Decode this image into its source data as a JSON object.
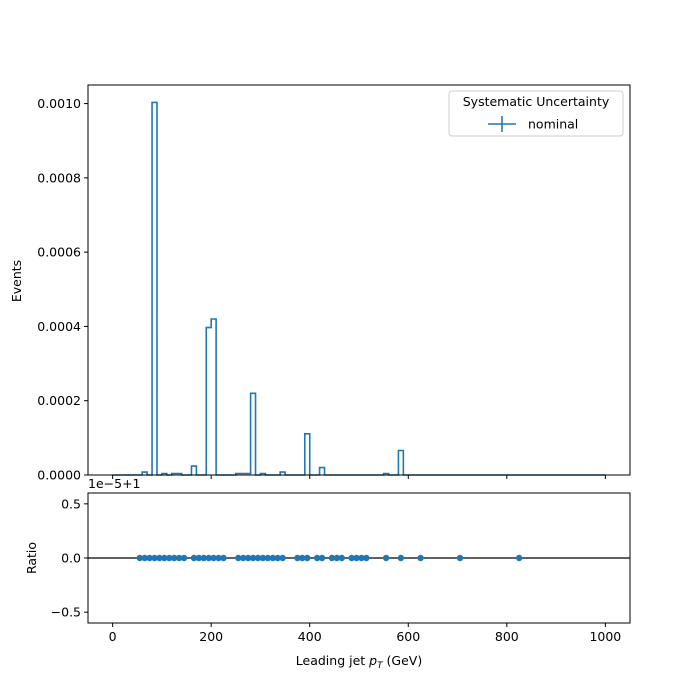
{
  "chart_data": [
    {
      "type": "histogram",
      "panel": "main",
      "ylabel": "Events",
      "xlim": [
        -50,
        1050
      ],
      "ylim": [
        0,
        0.00105
      ],
      "yticks": [
        0.0,
        0.0002,
        0.0004,
        0.0006,
        0.0008,
        0.001
      ],
      "ytick_labels": [
        "0.0000",
        "0.0002",
        "0.0004",
        "0.0006",
        "0.0008",
        "0.0010"
      ],
      "xticks": [
        0,
        200,
        400,
        600,
        800,
        1000
      ],
      "bin_width": 10,
      "bin_range": [
        0,
        1000
      ],
      "series": [
        {
          "name": "nominal",
          "color": "#1f77b4",
          "nonzero_bins": [
            {
              "x": 60,
              "y": 8e-06
            },
            {
              "x": 80,
              "y": 0.001003
            },
            {
              "x": 100,
              "y": 4e-06
            },
            {
              "x": 120,
              "y": 4e-06
            },
            {
              "x": 130,
              "y": 4e-06
            },
            {
              "x": 160,
              "y": 2.4e-05
            },
            {
              "x": 190,
              "y": 0.000397
            },
            {
              "x": 200,
              "y": 0.00042
            },
            {
              "x": 250,
              "y": 4e-06
            },
            {
              "x": 260,
              "y": 4e-06
            },
            {
              "x": 270,
              "y": 4e-06
            },
            {
              "x": 280,
              "y": 0.00022
            },
            {
              "x": 300,
              "y": 4e-06
            },
            {
              "x": 340,
              "y": 8e-06
            },
            {
              "x": 390,
              "y": 0.000111
            },
            {
              "x": 420,
              "y": 2e-05
            },
            {
              "x": 550,
              "y": 4e-06
            },
            {
              "x": 580,
              "y": 6.6e-05
            }
          ]
        }
      ],
      "legend": {
        "title": "Systematic Uncertainty",
        "entries": [
          "nominal"
        ],
        "position": "upper right"
      }
    },
    {
      "type": "scatter",
      "panel": "ratio",
      "ylabel": "Ratio",
      "xlabel": "Leading jet  p_T (GeV)",
      "xlabel_main": "Leading jet  ",
      "xlabel_math": "p",
      "xlabel_sub": "T",
      "xlabel_unit": " (GeV)",
      "offset_text": "1e−5+1",
      "xlim": [
        -50,
        1050
      ],
      "ylim": [
        -0.6,
        0.6
      ],
      "yticks": [
        -0.5,
        0.0,
        0.5
      ],
      "ytick_labels": [
        "−0.5",
        "0.0",
        "0.5"
      ],
      "xticks": [
        0,
        200,
        400,
        600,
        800,
        1000
      ],
      "xtick_labels": [
        "0",
        "200",
        "400",
        "600",
        "800",
        "1000"
      ],
      "reference_line": 0.0,
      "series": [
        {
          "name": "nominal",
          "color": "#1f77b4",
          "x": [
            55,
            65,
            75,
            85,
            95,
            105,
            115,
            125,
            135,
            145,
            165,
            175,
            185,
            195,
            205,
            215,
            225,
            255,
            265,
            275,
            285,
            295,
            305,
            315,
            325,
            335,
            345,
            375,
            385,
            395,
            415,
            425,
            445,
            455,
            465,
            485,
            495,
            505,
            515,
            555,
            585,
            625,
            705,
            825
          ],
          "y": [
            0,
            0,
            0,
            0,
            0,
            0,
            0,
            0,
            0,
            0,
            0,
            0,
            0,
            0,
            0,
            0,
            0,
            0,
            0,
            0,
            0,
            0,
            0,
            0,
            0,
            0,
            0,
            0,
            0,
            0,
            0,
            0,
            0,
            0,
            0,
            0,
            0,
            0,
            0,
            0,
            0,
            0,
            0,
            0
          ]
        }
      ]
    }
  ]
}
